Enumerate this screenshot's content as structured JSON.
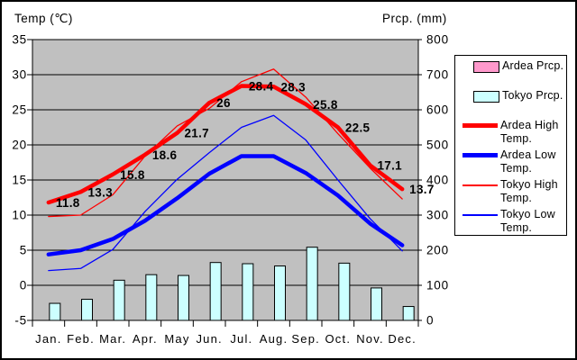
{
  "chart_data": {
    "type": "combo",
    "title": "",
    "categories": [
      "Jan.",
      "Feb.",
      "Mar.",
      "Apr.",
      "May",
      "Jun.",
      "Jul.",
      "Aug.",
      "Sep.",
      "Oct.",
      "Nov.",
      "Dec."
    ],
    "left_axis": {
      "title": "Temp (℃)",
      "min": -5,
      "max": 35,
      "step": 5,
      "ticks": [
        35,
        30,
        25,
        20,
        15,
        10,
        5,
        0,
        -5
      ]
    },
    "right_axis": {
      "title": "Prcp. (mm)",
      "min": 0,
      "max": 800,
      "step": 100,
      "ticks": [
        800,
        700,
        600,
        500,
        400,
        300,
        200,
        100,
        0
      ]
    },
    "grid": true,
    "plot_bg": "#c0c0c0",
    "legend_position": "right",
    "series": [
      {
        "name": "Ardea Prcp.",
        "type": "bar",
        "axis": "right",
        "color": "#ff99cc",
        "values": null
      },
      {
        "name": "Tokyo Prcp.",
        "type": "bar",
        "axis": "right",
        "color": "#ccffff",
        "values": [
          48.6,
          60.2,
          114.5,
          130.3,
          128.0,
          164.9,
          161.5,
          155.1,
          208.5,
          163.1,
          92.5,
          39.6
        ]
      },
      {
        "name": "Ardea High Temp.",
        "type": "line",
        "axis": "left",
        "color": "#ff0000",
        "width": 4.5,
        "values": [
          11.8,
          13.3,
          15.8,
          18.6,
          21.7,
          26,
          28.4,
          28.3,
          25.8,
          22.5,
          17.1,
          13.7
        ]
      },
      {
        "name": "Ardea Low Temp.",
        "type": "line",
        "axis": "left",
        "color": "#0000ff",
        "width": 4.5,
        "values": [
          4.4,
          5.0,
          6.6,
          9.2,
          12.4,
          15.9,
          18.4,
          18.4,
          16.0,
          12.8,
          8.8,
          5.7
        ]
      },
      {
        "name": "Tokyo High Temp.",
        "type": "line",
        "axis": "left",
        "color": "#ff0000",
        "width": 1.3,
        "values": [
          9.8,
          10.0,
          12.9,
          18.4,
          22.7,
          25.2,
          29.0,
          30.8,
          26.8,
          21.6,
          16.7,
          12.3
        ]
      },
      {
        "name": "Tokyo Low Temp.",
        "type": "line",
        "axis": "left",
        "color": "#0000ff",
        "width": 1.3,
        "values": [
          2.1,
          2.4,
          5.1,
          10.5,
          15.1,
          18.9,
          22.5,
          24.2,
          20.7,
          15.0,
          9.5,
          4.9
        ]
      }
    ],
    "point_labels": {
      "series": "Ardea High Temp.",
      "texts": [
        "11.8",
        "13.3",
        "15.8",
        "18.6",
        "21.7",
        "26",
        "28.4",
        "28.3",
        "25.8",
        "22.5",
        "17.1",
        "13.7"
      ]
    }
  }
}
